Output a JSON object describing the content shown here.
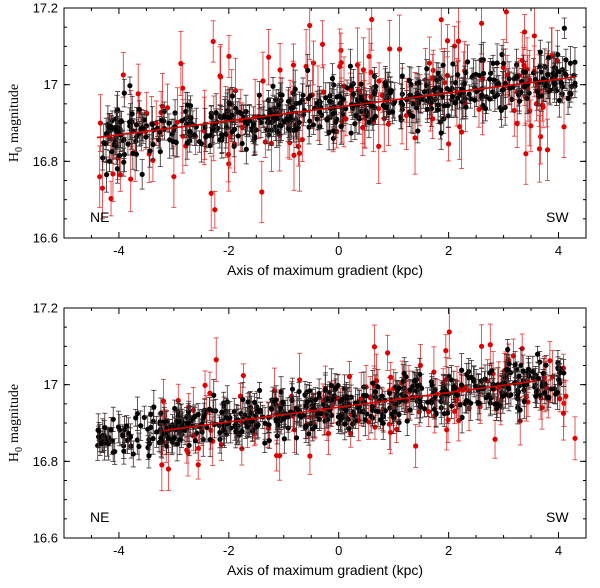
{
  "colors": {
    "black_stars": "#000000",
    "red_stars": "#e00000",
    "fit_line": "#e00000",
    "errbar_black": "#3a2a2a",
    "errbar_red": "#e03030"
  },
  "chart_data": [
    {
      "type": "scatter",
      "panel": "top",
      "title": "",
      "xlabel": "Axis of maximum gradient (kpc)",
      "ylabel_main": "H",
      "ylabel_sub": "0",
      "ylabel_rest": "magnitude",
      "xlim": [
        -5,
        4.5
      ],
      "ylim": [
        16.6,
        17.2
      ],
      "xticks": [
        -4,
        -2,
        0,
        2,
        4
      ],
      "yticks": [
        16.6,
        16.8,
        17.0,
        17.2
      ],
      "ytick_labels": [
        "16.6",
        "16.8",
        "17",
        "17.2"
      ],
      "xtick_labels": [
        "-4",
        "-2",
        "0",
        "2",
        "4"
      ],
      "annotations": {
        "left": "NE",
        "right": "SW"
      },
      "fit": {
        "x": [
          -4.4,
          4.3
        ],
        "y": [
          16.862,
          17.02
        ]
      },
      "series": [
        {
          "name": "black",
          "n": 520,
          "xrange": [
            -4.4,
            4.3
          ],
          "scatter": 0.035,
          "err": [
            0.02,
            0.05
          ],
          "seed": 11
        },
        {
          "name": "red",
          "n": 170,
          "xrange": [
            -4.4,
            4.2
          ],
          "scatter": 0.075,
          "err": [
            0.04,
            0.1
          ],
          "seed": 29,
          "outliers": [
            {
              "x": -4.35,
              "y": 16.76
            },
            {
              "x": -4.3,
              "y": 16.73
            },
            {
              "x": -1.4,
              "y": 16.72
            },
            {
              "x": -3.0,
              "y": 16.76
            },
            {
              "x": 3.05,
              "y": 17.19
            },
            {
              "x": 0.6,
              "y": 17.17
            },
            {
              "x": 3.8,
              "y": 16.83
            },
            {
              "x": 4.1,
              "y": 16.89
            },
            {
              "x": 2.6,
              "y": 17.16
            }
          ]
        }
      ]
    },
    {
      "type": "scatter",
      "panel": "bottom",
      "title": "",
      "xlabel": "Axis of maximum gradient (kpc)",
      "ylabel_main": "H",
      "ylabel_sub": "0",
      "ylabel_rest": "magnitude",
      "xlim": [
        -5,
        4.5
      ],
      "ylim": [
        16.6,
        17.2
      ],
      "xticks": [
        -4,
        -2,
        0,
        2,
        4
      ],
      "yticks": [
        16.6,
        16.8,
        17.0,
        17.2
      ],
      "ytick_labels": [
        "16.6",
        "16.8",
        "17",
        "17.2"
      ],
      "xtick_labels": [
        "-4",
        "-2",
        "0",
        "2",
        "4"
      ],
      "annotations": {
        "left": "NE",
        "right": "SW"
      },
      "fit": {
        "x": [
          -3.2,
          3.6
        ],
        "y": [
          16.88,
          17.01
        ]
      },
      "series": [
        {
          "name": "black",
          "n": 540,
          "xrange": [
            -4.4,
            4.1
          ],
          "scatter": 0.03,
          "err": [
            0.02,
            0.045
          ],
          "seed": 47
        },
        {
          "name": "red",
          "n": 140,
          "xrange": [
            -3.3,
            4.2
          ],
          "scatter": 0.055,
          "err": [
            0.03,
            0.07
          ],
          "seed": 83,
          "outliers": [
            {
              "x": 4.3,
              "y": 16.86
            },
            {
              "x": 2.6,
              "y": 17.1
            },
            {
              "x": -3.1,
              "y": 16.78
            },
            {
              "x": 1.4,
              "y": 16.84
            },
            {
              "x": 3.7,
              "y": 16.94
            }
          ]
        }
      ]
    }
  ]
}
